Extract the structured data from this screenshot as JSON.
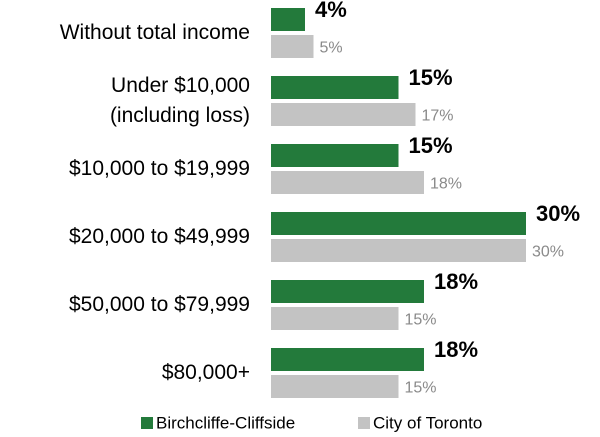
{
  "chart_data": {
    "type": "bar",
    "orientation": "horizontal",
    "categories": [
      "Without total income",
      "Under $10,000\n(including loss)",
      "$10,000 to $19,999",
      "$20,000 to $49,999",
      "$50,000 to $79,999",
      "$80,000+"
    ],
    "series": [
      {
        "name": "Birchcliffe-Cliffside",
        "color": "#237a3b",
        "values": [
          4,
          15,
          15,
          30,
          18,
          18
        ],
        "value_labels": [
          "4%",
          "15%",
          "15%",
          "30%",
          "18%",
          "18%"
        ]
      },
      {
        "name": "City of Toronto",
        "color": "#c3c3c3",
        "values": [
          5,
          17,
          18,
          30,
          15,
          15
        ],
        "value_labels": [
          "5%",
          "17%",
          "18%",
          "30%",
          "15%",
          "15%"
        ]
      }
    ]
  }
}
